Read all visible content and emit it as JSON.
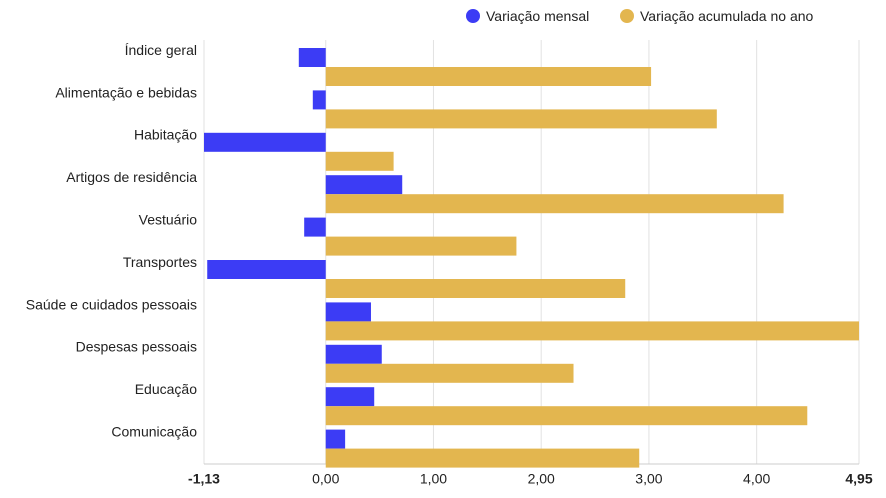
{
  "chart_data": {
    "type": "bar",
    "orientation": "horizontal",
    "categories": [
      "Índice geral",
      "Alimentação e bebidas",
      "Habitação",
      "Artigos de residência",
      "Vestuário",
      "Transportes",
      "Saúde e cuidados pessoais",
      "Despesas pessoais",
      "Educação",
      "Comunicação"
    ],
    "series": [
      {
        "name": "Variação mensal",
        "color": "#3c3cf5",
        "values": [
          -0.25,
          -0.12,
          -1.13,
          0.71,
          -0.2,
          -1.1,
          0.42,
          0.52,
          0.45,
          0.18
        ]
      },
      {
        "name": "Variação acumulada no ano",
        "color": "#e3b64f",
        "values": [
          3.02,
          3.63,
          0.63,
          4.25,
          1.77,
          2.78,
          4.95,
          2.3,
          4.47,
          2.91
        ]
      }
    ],
    "xlim": [
      -1.13,
      4.95
    ],
    "xticks": [
      {
        "value": -1.13,
        "label": "-1,13",
        "bold": true
      },
      {
        "value": 0,
        "label": "0,00",
        "bold": false
      },
      {
        "value": 1,
        "label": "1,00",
        "bold": false
      },
      {
        "value": 2,
        "label": "2,00",
        "bold": false
      },
      {
        "value": 3,
        "label": "3,00",
        "bold": false
      },
      {
        "value": 4,
        "label": "4,00",
        "bold": false
      },
      {
        "value": 4.95,
        "label": "4,95",
        "bold": true
      }
    ],
    "grid": true,
    "legend_position": "top-right"
  }
}
